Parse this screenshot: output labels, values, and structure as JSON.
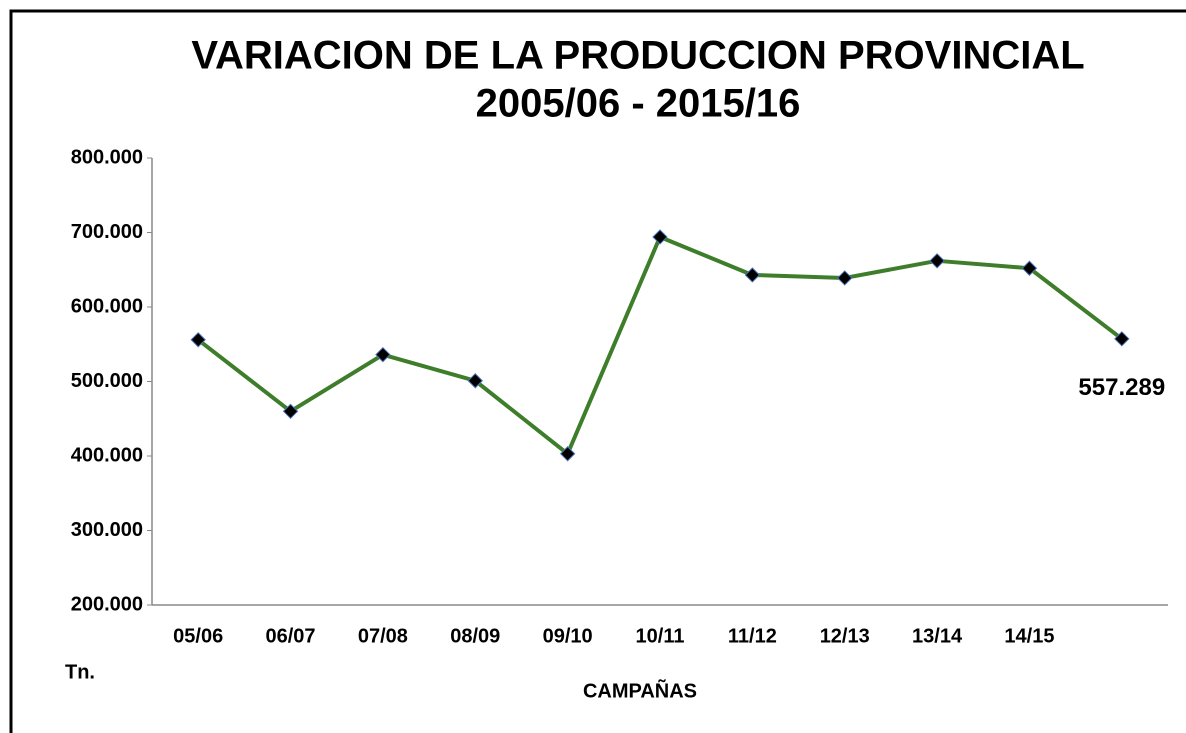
{
  "chart_data": {
    "type": "line",
    "title": "VARIACION DE LA PRODUCCION PROVINCIAL",
    "subtitle": "2005/06 - 2015/16",
    "y_label": "Tn.",
    "x_label": "CAMPAÑAS",
    "categories": [
      "05/06",
      "06/07",
      "07/08",
      "08/09",
      "09/10",
      "10/11",
      "11/12",
      "12/13",
      "13/14",
      "14/15",
      null
    ],
    "series": [
      {
        "name": "Producción",
        "color": "#3e7d2a",
        "marker_color": "#000000",
        "values": [
          556000,
          460000,
          536000,
          501000,
          403000,
          694000,
          643000,
          639000,
          662000,
          652000,
          557289
        ],
        "value_labels": [
          null,
          null,
          null,
          null,
          null,
          null,
          null,
          null,
          null,
          null,
          "557.289"
        ]
      }
    ],
    "ylim": [
      200000,
      800000
    ],
    "yticks": [
      {
        "value": 200000,
        "label": "200.000"
      },
      {
        "value": 300000,
        "label": "300.000"
      },
      {
        "value": 400000,
        "label": "400.000"
      },
      {
        "value": 500000,
        "label": "500.000"
      },
      {
        "value": 600000,
        "label": "600.000"
      },
      {
        "value": 700000,
        "label": "700.000"
      },
      {
        "value": 800000,
        "label": "800.000"
      }
    ],
    "grid": false
  }
}
